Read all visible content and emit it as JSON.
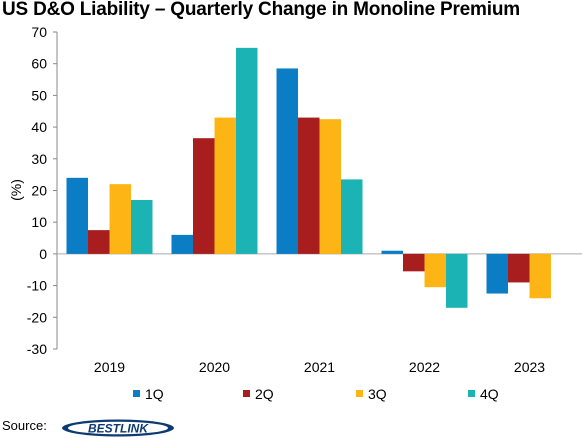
{
  "chart_data": {
    "type": "bar",
    "title": "US D&O Liability – Quarterly Change in Monoline Premium",
    "ylabel": "(%)",
    "xlabel": "",
    "categories": [
      "2019",
      "2020",
      "2021",
      "2022",
      "2023"
    ],
    "series": [
      {
        "name": "1Q",
        "color": "#0A7DC5",
        "values": [
          24,
          6,
          58.5,
          1,
          -12.5
        ]
      },
      {
        "name": "2Q",
        "color": "#A81E1E",
        "values": [
          7.5,
          36.5,
          43,
          -5.5,
          -9
        ]
      },
      {
        "name": "3Q",
        "color": "#FDB515",
        "values": [
          22,
          43,
          42.5,
          -10.5,
          -14
        ]
      },
      {
        "name": "4Q",
        "color": "#1BB3B3",
        "values": [
          17,
          65,
          23.5,
          -17,
          null
        ]
      }
    ],
    "ylim": [
      -30,
      70
    ],
    "yticks": [
      "70",
      "60",
      "50",
      "40",
      "30",
      "20",
      "10",
      "0",
      "-10",
      "-20",
      "-30"
    ],
    "legend_position": "bottom",
    "grid": false
  },
  "source_label": "Source:",
  "logo_text": "BESTLINK"
}
